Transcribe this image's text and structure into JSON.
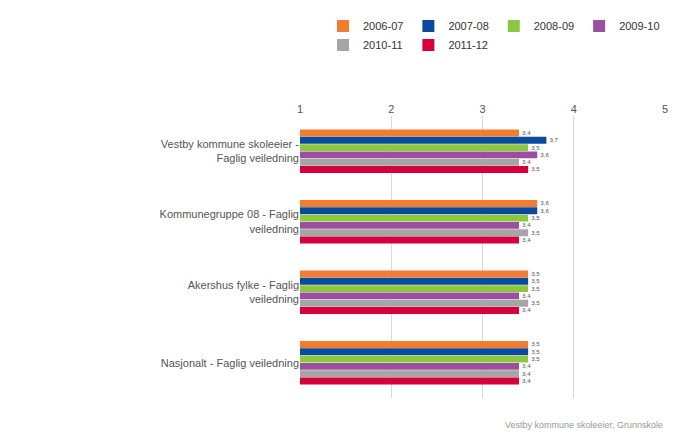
{
  "chart_data": {
    "type": "bar",
    "orientation": "horizontal",
    "categories": [
      "Vestby kommune skoleeier - Faglig veiledning",
      "Kommunegruppe 08 - Faglig veiledning",
      "Akershus fylke - Faglig veiledning",
      "Nasjonalt - Faglig veiledning"
    ],
    "series": [
      {
        "name": "2006-07",
        "color": "#f47c30",
        "values": [
          3.4,
          3.6,
          3.5,
          3.5
        ],
        "value_labels": [
          "3,4",
          "3,6",
          "3,5",
          "3,5"
        ]
      },
      {
        "name": "2007-08",
        "color": "#0a4a9c",
        "values": [
          3.7,
          3.6,
          3.5,
          3.5
        ],
        "value_labels": [
          "3,7",
          "3,6",
          "3,5",
          "3,5"
        ]
      },
      {
        "name": "2008-09",
        "color": "#8dc63f",
        "values": [
          3.5,
          3.5,
          3.5,
          3.5
        ],
        "value_labels": [
          "3,5",
          "3,5",
          "3,5",
          "3,5"
        ]
      },
      {
        "name": "2009-10",
        "color": "#9b4f9f",
        "values": [
          3.6,
          3.4,
          3.4,
          3.4
        ],
        "value_labels": [
          "3,6",
          "3,4",
          "3,4",
          "3,4"
        ]
      },
      {
        "name": "2010-11",
        "color": "#a6a6a6",
        "values": [
          3.4,
          3.5,
          3.5,
          3.4
        ],
        "value_labels": [
          "3,4",
          "3,5",
          "3,5",
          "3,4"
        ]
      },
      {
        "name": "2011-12",
        "color": "#d6003c",
        "values": [
          3.5,
          3.4,
          3.4,
          3.4
        ],
        "value_labels": [
          "3,5",
          "3,4",
          "3,4",
          "3,4"
        ]
      }
    ],
    "xlim": [
      1,
      5
    ],
    "xticks": [
      1,
      2,
      3,
      4,
      5
    ],
    "grid": true,
    "legend": "top",
    "data_labels": true,
    "annotations": [
      "Vestby kommune skoleeier, Grunnskole"
    ]
  }
}
